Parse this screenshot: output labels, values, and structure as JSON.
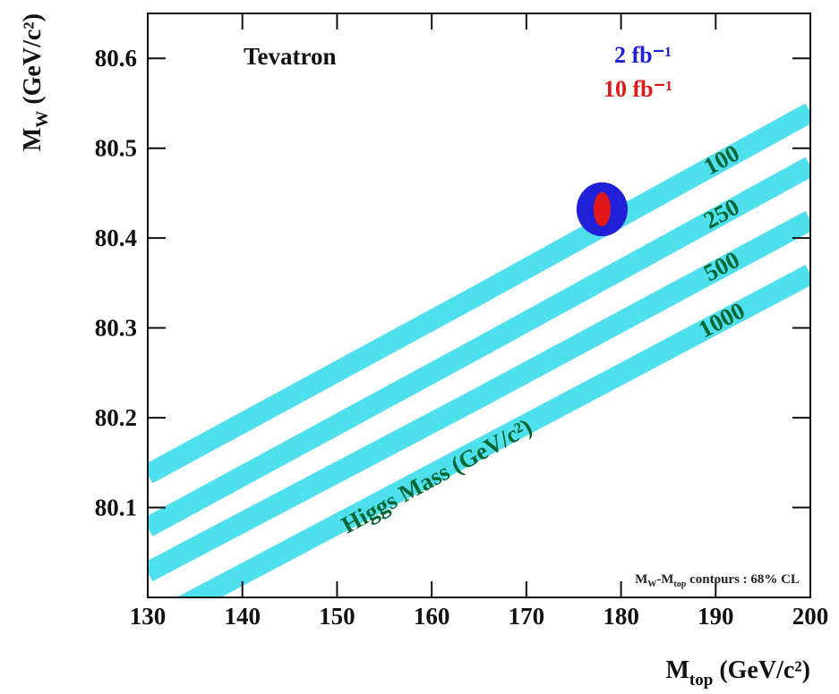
{
  "chart_data": {
    "type": "band",
    "annotation_top": "Tevatron",
    "x_label": {
      "main": "M",
      "sub": "top",
      "unit": " (GeV/c²)"
    },
    "y_label": {
      "main": "M",
      "sub": "W",
      "unit": " (GeV/c²)"
    },
    "band_annotation": "Higgs Mass (GeV/c²)",
    "note": {
      "m1": "M",
      "s1": "W",
      "m2": "-M",
      "s2": "top",
      "rest": " contours : 68% CL"
    },
    "xlim": [
      130,
      200
    ],
    "ylim": [
      80.0,
      80.65
    ],
    "xticks": [
      130,
      140,
      150,
      160,
      170,
      180,
      190,
      200
    ],
    "yticks": [
      80.1,
      80.2,
      80.3,
      80.4,
      80.5,
      80.6
    ],
    "x": [
      130,
      165,
      200
    ],
    "series": [
      {
        "name": "100",
        "color": "#4fe0ee",
        "values": [
          80.137,
          80.337,
          80.54
        ],
        "halfwidth": 0.013
      },
      {
        "name": "250",
        "color": "#4fe0ee",
        "values": [
          80.078,
          80.278,
          80.48
        ],
        "halfwidth": 0.013
      },
      {
        "name": "500",
        "color": "#4fe0ee",
        "values": [
          80.028,
          80.222,
          80.42
        ],
        "halfwidth": 0.013
      },
      {
        "name": "1000",
        "color": "#4fe0ee",
        "values": [
          79.97,
          80.165,
          80.36
        ],
        "halfwidth": 0.013
      }
    ],
    "ellipses": [
      {
        "name": "2 fb⁻¹",
        "color": "#2020d8",
        "x": 178,
        "y": 80.432,
        "rx": 2.7,
        "ry": 0.03
      },
      {
        "name": "10 fb⁻¹",
        "color": "#e01818",
        "x": 178,
        "y": 80.432,
        "rx": 0.9,
        "ry": 0.019
      }
    ]
  }
}
